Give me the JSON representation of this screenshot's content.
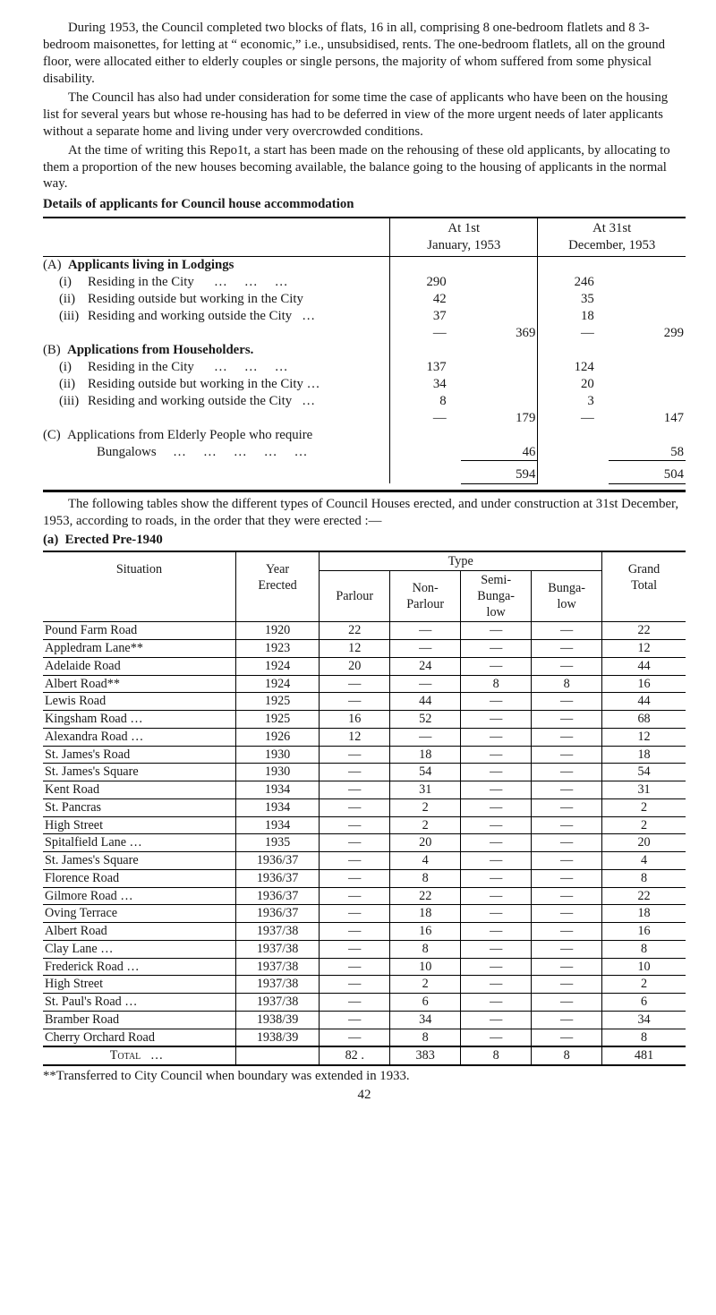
{
  "intro": {
    "p1": "During 1953, the Council completed two blocks of flats, 16 in all, comprising 8 one-bedroom flatlets and 8 3-bedroom maisonettes, for letting at “ economic,” i.e., unsubsidised, rents. The one-bedroom flatlets, all on the ground floor, were allocated either to elderly couples or single persons, the majority of whom suffered from some physical disability.",
    "p2": "The Council has also had under consideration for some time the case of applicants who have been on the housing list for several years but whose re-housing has had to be deferred in view of the more urgent needs of later applicants without a separate home and living under very overcrowded conditions.",
    "p3": "At the time of writing this Repo1t, a start has been made on the rehousing of these old applicants, by allocating to them a proportion of the new houses becoming available, the balance going to the housing of applicants in the normal way.",
    "heading1": "Details of applicants for Council house accommodation"
  },
  "table1": {
    "head_left": "At 1st",
    "head_left2": "January, 1953",
    "head_right": "At 31st",
    "head_right2": "December, 1953",
    "A_title_letter": "(A)",
    "A_title": "Applicants living in Lodgings",
    "A_i_label": "(i)",
    "A_i_text": "Residing in the City",
    "A_i_v1": "290",
    "A_i_v3": "246",
    "A_ii_label": "(ii)",
    "A_ii_text": "Residing outside but working in the City",
    "A_ii_v1": "42",
    "A_ii_v3": "35",
    "A_iii_label": "(iii)",
    "A_iii_text": "Residing and working outside the City",
    "A_iii_v1": "37",
    "A_iii_v3": "18",
    "A_sub_v2": "369",
    "A_sub_v4": "299",
    "dash": "—",
    "B_title_letter": "(B)",
    "B_title": "Applications from Householders.",
    "B_i_v1": "137",
    "B_i_v3": "124",
    "B_ii_text": "Residing outside but working in the City",
    "B_ii_v1": "34",
    "B_ii_v3": "20",
    "B_iii_v1": "8",
    "B_iii_v3": "3",
    "B_sub_v2": "179",
    "B_sub_v4": "147",
    "C_title_letter": "(C)",
    "C_title": "Applications from Elderly People who require",
    "C_title2": "Bungalows",
    "C_v2": "46",
    "C_v4": "58",
    "total_v2": "594",
    "total_v4": "504",
    "ellipsis3": "…   …   …",
    "ellipsis4": "…   …   …   …",
    "ellipsis5": "…   …   …   …   …"
  },
  "mid": {
    "p": "The following tables show the different types of Council Houses erected, and under construction at 31st December, 1953, according to roads, in the order that they were erected :—",
    "sub": "(a)  Erected Pre-1940"
  },
  "table2": {
    "h_situation": "Situation",
    "h_year": "Year",
    "h_erected": "Erected",
    "h_type": "Type",
    "h_parlour": "Parlour",
    "h_nonparlour_1": "Non-",
    "h_nonparlour_2": "Parlour",
    "h_semi_1": "Semi-",
    "h_semi_2": "Bunga-",
    "h_semi_3": "low",
    "h_bunga_1": "Bunga-",
    "h_bunga_2": "low",
    "h_grand_1": "Grand",
    "h_grand_2": "Total",
    "rows": [
      {
        "sit": "Pound Farm Road",
        "year": "1920",
        "p": "22",
        "np": "—",
        "sb": "—",
        "b": "—",
        "gt": "22"
      },
      {
        "sit": "Appledram Lane**",
        "year": "1923",
        "p": "12",
        "np": "—",
        "sb": "—",
        "b": "—",
        "gt": "12"
      },
      {
        "sit": "Adelaide Road",
        "year": "1924",
        "p": "20",
        "np": "24",
        "sb": "—",
        "b": "—",
        "gt": "44"
      },
      {
        "sit": "Albert Road**",
        "year": "1924",
        "p": "—",
        "np": "—",
        "sb": "8",
        "b": "8",
        "gt": "16"
      },
      {
        "sit": "Lewis Road",
        "year": "1925",
        "p": "—",
        "np": "44",
        "sb": "—",
        "b": "—",
        "gt": "44"
      },
      {
        "sit": "Kingsham Road …",
        "year": "1925",
        "p": "16",
        "np": "52",
        "sb": "—",
        "b": "—",
        "gt": "68"
      },
      {
        "sit": "Alexandra Road …",
        "year": "1926",
        "p": "12",
        "np": "—",
        "sb": "—",
        "b": "—",
        "gt": "12"
      },
      {
        "sit": "St. James's Road",
        "year": "1930",
        "p": "—",
        "np": "18",
        "sb": "—",
        "b": "—",
        "gt": "18"
      },
      {
        "sit": "St. James's Square",
        "year": "1930",
        "p": "—",
        "np": "54",
        "sb": "—",
        "b": "—",
        "gt": "54"
      },
      {
        "sit": "Kent Road",
        "year": "1934",
        "p": "—",
        "np": "31",
        "sb": "—",
        "b": "—",
        "gt": "31"
      },
      {
        "sit": "St. Pancras",
        "year": "1934",
        "p": "—",
        "np": "2",
        "sb": "—",
        "b": "—",
        "gt": "2"
      },
      {
        "sit": "High Street",
        "year": "1934",
        "p": "—",
        "np": "2",
        "sb": "—",
        "b": "—",
        "gt": "2"
      },
      {
        "sit": "Spitalfield Lane …",
        "year": "1935",
        "p": "—",
        "np": "20",
        "sb": "—",
        "b": "—",
        "gt": "20"
      },
      {
        "sit": "St. James's Square",
        "year": "1936/37",
        "p": "—",
        "np": "4",
        "sb": "—",
        "b": "—",
        "gt": "4"
      },
      {
        "sit": "Florence Road",
        "year": "1936/37",
        "p": "—",
        "np": "8",
        "sb": "—",
        "b": "—",
        "gt": "8"
      },
      {
        "sit": "Gilmore Road …",
        "year": "1936/37",
        "p": "—",
        "np": "22",
        "sb": "—",
        "b": "—",
        "gt": "22"
      },
      {
        "sit": "Oving Terrace",
        "year": "1936/37",
        "p": "—",
        "np": "18",
        "sb": "—",
        "b": "—",
        "gt": "18"
      },
      {
        "sit": "Albert Road",
        "year": "1937/38",
        "p": "—",
        "np": "16",
        "sb": "—",
        "b": "—",
        "gt": "16"
      },
      {
        "sit": "Clay Lane …",
        "year": "1937/38",
        "p": "—",
        "np": "8",
        "sb": "—",
        "b": "—",
        "gt": "8"
      },
      {
        "sit": "Frederick Road …",
        "year": "1937/38",
        "p": "—",
        "np": "10",
        "sb": "—",
        "b": "—",
        "gt": "10"
      },
      {
        "sit": "High Street",
        "year": "1937/38",
        "p": "—",
        "np": "2",
        "sb": "—",
        "b": "—",
        "gt": "2"
      },
      {
        "sit": "St. Paul's Road …",
        "year": "1937/38",
        "p": "—",
        "np": "6",
        "sb": "—",
        "b": "—",
        "gt": "6"
      },
      {
        "sit": "Bramber Road",
        "year": "1938/39",
        "p": "—",
        "np": "34",
        "sb": "—",
        "b": "—",
        "gt": "34"
      },
      {
        "sit": "Cherry Orchard Road",
        "year": "1938/39",
        "p": "—",
        "np": "8",
        "sb": "—",
        "b": "—",
        "gt": "8"
      }
    ],
    "total_label": "Total",
    "total_p": "82 .",
    "total_np": "383",
    "total_sb": "8",
    "total_b": "8",
    "total_gt": "481"
  },
  "footnote": "**Transferred to City Council when boundary was extended in 1933.",
  "pagenum": "42",
  "ellip": "…"
}
